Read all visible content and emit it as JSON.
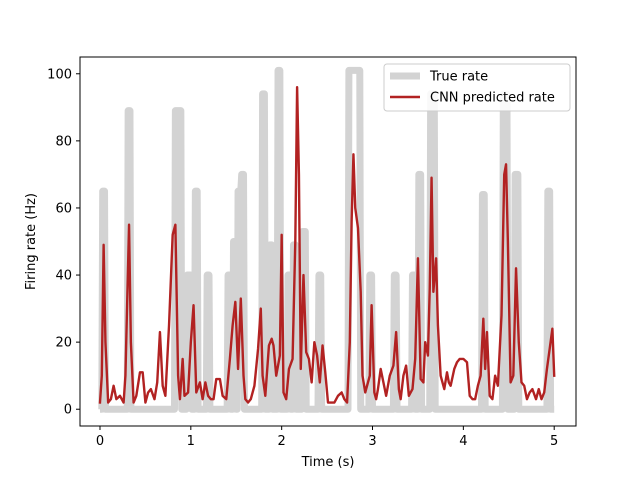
{
  "chart_data": {
    "type": "line",
    "title": "",
    "xlabel": "Time (s)",
    "ylabel": "Firing rate (Hz)",
    "xlim": [
      -0.22,
      5.24
    ],
    "ylim": [
      -5,
      105
    ],
    "xticks": [
      0,
      1,
      2,
      3,
      4,
      5
    ],
    "xtick_labels": [
      "0",
      "1",
      "2",
      "3",
      "4",
      "5"
    ],
    "yticks": [
      0,
      20,
      40,
      60,
      80,
      100
    ],
    "ytick_labels": [
      "0",
      "20",
      "40",
      "60",
      "80",
      "100"
    ],
    "grid": false,
    "legend_position": "top-right",
    "series": [
      {
        "name": "True rate",
        "color": "#d3d3d3",
        "points": [
          [
            0,
            0
          ],
          [
            0.02,
            0
          ],
          [
            0.03,
            65
          ],
          [
            0.05,
            65
          ],
          [
            0.06,
            0
          ],
          [
            0.3,
            0
          ],
          [
            0.31,
            89
          ],
          [
            0.33,
            89
          ],
          [
            0.34,
            0
          ],
          [
            0.82,
            0
          ],
          [
            0.83,
            89
          ],
          [
            0.89,
            89
          ],
          [
            0.9,
            0
          ],
          [
            0.95,
            0
          ],
          [
            0.96,
            40
          ],
          [
            1.0,
            40
          ],
          [
            1.01,
            0
          ],
          [
            1.04,
            0
          ],
          [
            1.05,
            65
          ],
          [
            1.07,
            65
          ],
          [
            1.08,
            0
          ],
          [
            1.17,
            0
          ],
          [
            1.18,
            40
          ],
          [
            1.2,
            40
          ],
          [
            1.21,
            0
          ],
          [
            1.4,
            0
          ],
          [
            1.41,
            40
          ],
          [
            1.43,
            40
          ],
          [
            1.44,
            0
          ],
          [
            1.46,
            0
          ],
          [
            1.47,
            50
          ],
          [
            1.49,
            50
          ],
          [
            1.5,
            0
          ],
          [
            1.51,
            0
          ],
          [
            1.52,
            65
          ],
          [
            1.55,
            65
          ],
          [
            1.56,
            70
          ],
          [
            1.58,
            70
          ],
          [
            1.59,
            0
          ],
          [
            1.78,
            0
          ],
          [
            1.79,
            94
          ],
          [
            1.81,
            94
          ],
          [
            1.82,
            0
          ],
          [
            1.86,
            0
          ],
          [
            1.87,
            49
          ],
          [
            1.89,
            49
          ],
          [
            1.9,
            0
          ],
          [
            1.95,
            0
          ],
          [
            1.96,
            101
          ],
          [
            1.98,
            101
          ],
          [
            1.99,
            0
          ],
          [
            2.06,
            0
          ],
          [
            2.07,
            40
          ],
          [
            2.09,
            40
          ],
          [
            2.1,
            0
          ],
          [
            2.12,
            0
          ],
          [
            2.13,
            49
          ],
          [
            2.15,
            49
          ],
          [
            2.16,
            0
          ],
          [
            2.22,
            0
          ],
          [
            2.23,
            53
          ],
          [
            2.26,
            53
          ],
          [
            2.27,
            0
          ],
          [
            2.4,
            0
          ],
          [
            2.41,
            40
          ],
          [
            2.43,
            40
          ],
          [
            2.44,
            0
          ],
          [
            2.73,
            0
          ],
          [
            2.74,
            101
          ],
          [
            2.86,
            101
          ],
          [
            2.87,
            0
          ],
          [
            2.96,
            0
          ],
          [
            2.97,
            40
          ],
          [
            2.99,
            40
          ],
          [
            3.0,
            0
          ],
          [
            3.23,
            0
          ],
          [
            3.24,
            40
          ],
          [
            3.26,
            40
          ],
          [
            3.27,
            0
          ],
          [
            3.43,
            0
          ],
          [
            3.44,
            40
          ],
          [
            3.46,
            40
          ],
          [
            3.47,
            0
          ],
          [
            3.5,
            0
          ],
          [
            3.51,
            70
          ],
          [
            3.53,
            70
          ],
          [
            3.54,
            0
          ],
          [
            3.63,
            0
          ],
          [
            3.64,
            94
          ],
          [
            3.68,
            94
          ],
          [
            3.69,
            0
          ],
          [
            4.2,
            0
          ],
          [
            4.21,
            64
          ],
          [
            4.23,
            64
          ],
          [
            4.24,
            0
          ],
          [
            4.43,
            0
          ],
          [
            4.44,
            94
          ],
          [
            4.48,
            94
          ],
          [
            4.49,
            0
          ],
          [
            4.56,
            0
          ],
          [
            4.57,
            70
          ],
          [
            4.6,
            70
          ],
          [
            4.61,
            0
          ],
          [
            4.92,
            0
          ],
          [
            4.93,
            65
          ],
          [
            4.95,
            65
          ],
          [
            4.96,
            0
          ],
          [
            5.0,
            0
          ]
        ]
      },
      {
        "name": "CNN predicted rate",
        "color": "#b22222",
        "points": [
          [
            0,
            2
          ],
          [
            0.02,
            10
          ],
          [
            0.04,
            49
          ],
          [
            0.06,
            20
          ],
          [
            0.09,
            2
          ],
          [
            0.12,
            3
          ],
          [
            0.15,
            7
          ],
          [
            0.18,
            3
          ],
          [
            0.22,
            4
          ],
          [
            0.26,
            2
          ],
          [
            0.28,
            10
          ],
          [
            0.32,
            55
          ],
          [
            0.34,
            20
          ],
          [
            0.37,
            2
          ],
          [
            0.4,
            4
          ],
          [
            0.44,
            11
          ],
          [
            0.47,
            11
          ],
          [
            0.5,
            2
          ],
          [
            0.53,
            5
          ],
          [
            0.56,
            6
          ],
          [
            0.6,
            3
          ],
          [
            0.63,
            8
          ],
          [
            0.66,
            23
          ],
          [
            0.69,
            7
          ],
          [
            0.72,
            4
          ],
          [
            0.76,
            25
          ],
          [
            0.8,
            52
          ],
          [
            0.83,
            55
          ],
          [
            0.86,
            10
          ],
          [
            0.88,
            3
          ],
          [
            0.91,
            15
          ],
          [
            0.93,
            4
          ],
          [
            0.97,
            5
          ],
          [
            1.0,
            20
          ],
          [
            1.03,
            31
          ],
          [
            1.06,
            5
          ],
          [
            1.1,
            8
          ],
          [
            1.13,
            3
          ],
          [
            1.16,
            8
          ],
          [
            1.19,
            4
          ],
          [
            1.22,
            3
          ],
          [
            1.25,
            3
          ],
          [
            1.28,
            9
          ],
          [
            1.32,
            9
          ],
          [
            1.35,
            4
          ],
          [
            1.39,
            3
          ],
          [
            1.43,
            15
          ],
          [
            1.46,
            25
          ],
          [
            1.49,
            32
          ],
          [
            1.52,
            12
          ],
          [
            1.55,
            33
          ],
          [
            1.58,
            10
          ],
          [
            1.6,
            3
          ],
          [
            1.63,
            2
          ],
          [
            1.66,
            3
          ],
          [
            1.7,
            7
          ],
          [
            1.74,
            18
          ],
          [
            1.77,
            30
          ],
          [
            1.79,
            10
          ],
          [
            1.82,
            4
          ],
          [
            1.86,
            19
          ],
          [
            1.89,
            21
          ],
          [
            1.91,
            19
          ],
          [
            1.94,
            10
          ],
          [
            1.98,
            16
          ],
          [
            2.0,
            52
          ],
          [
            2.02,
            5
          ],
          [
            2.05,
            3
          ],
          [
            2.08,
            12
          ],
          [
            2.12,
            15
          ],
          [
            2.15,
            50
          ],
          [
            2.17,
            96
          ],
          [
            2.19,
            70
          ],
          [
            2.21,
            12
          ],
          [
            2.24,
            40
          ],
          [
            2.27,
            17
          ],
          [
            2.3,
            15
          ],
          [
            2.33,
            8
          ],
          [
            2.36,
            20
          ],
          [
            2.39,
            16
          ],
          [
            2.42,
            8
          ],
          [
            2.45,
            19
          ],
          [
            2.48,
            11
          ],
          [
            2.51,
            2
          ],
          [
            2.55,
            2
          ],
          [
            2.58,
            2
          ],
          [
            2.62,
            4
          ],
          [
            2.66,
            5
          ],
          [
            2.69,
            3
          ],
          [
            2.72,
            2
          ],
          [
            2.75,
            20
          ],
          [
            2.77,
            56
          ],
          [
            2.79,
            76
          ],
          [
            2.81,
            60
          ],
          [
            2.84,
            54
          ],
          [
            2.87,
            35
          ],
          [
            2.89,
            10
          ],
          [
            2.92,
            5
          ],
          [
            2.95,
            8
          ],
          [
            2.97,
            10
          ],
          [
            2.99,
            31
          ],
          [
            3.02,
            5
          ],
          [
            3.04,
            3
          ],
          [
            3.06,
            6
          ],
          [
            3.09,
            12
          ],
          [
            3.12,
            8
          ],
          [
            3.15,
            4
          ],
          [
            3.19,
            10
          ],
          [
            3.23,
            13
          ],
          [
            3.26,
            23
          ],
          [
            3.29,
            6
          ],
          [
            3.31,
            3
          ],
          [
            3.34,
            10
          ],
          [
            3.37,
            13
          ],
          [
            3.4,
            4
          ],
          [
            3.44,
            6
          ],
          [
            3.47,
            15
          ],
          [
            3.5,
            45
          ],
          [
            3.53,
            9
          ],
          [
            3.56,
            8
          ],
          [
            3.58,
            20
          ],
          [
            3.61,
            16
          ],
          [
            3.63,
            36
          ],
          [
            3.65,
            69
          ],
          [
            3.67,
            35
          ],
          [
            3.7,
            45
          ],
          [
            3.72,
            25
          ],
          [
            3.75,
            10
          ],
          [
            3.79,
            6
          ],
          [
            3.82,
            11
          ],
          [
            3.84,
            8
          ],
          [
            3.86,
            7
          ],
          [
            3.9,
            12
          ],
          [
            3.93,
            14
          ],
          [
            3.96,
            15
          ],
          [
            4.0,
            15
          ],
          [
            4.04,
            14
          ],
          [
            4.07,
            4
          ],
          [
            4.1,
            3
          ],
          [
            4.13,
            3
          ],
          [
            4.16,
            7
          ],
          [
            4.19,
            10
          ],
          [
            4.22,
            27
          ],
          [
            4.24,
            12
          ],
          [
            4.26,
            23
          ],
          [
            4.29,
            4
          ],
          [
            4.32,
            3
          ],
          [
            4.35,
            10
          ],
          [
            4.38,
            7
          ],
          [
            4.42,
            28
          ],
          [
            4.45,
            70
          ],
          [
            4.47,
            73
          ],
          [
            4.49,
            50
          ],
          [
            4.52,
            8
          ],
          [
            4.55,
            10
          ],
          [
            4.58,
            42
          ],
          [
            4.61,
            20
          ],
          [
            4.64,
            8
          ],
          [
            4.67,
            7
          ],
          [
            4.7,
            3
          ],
          [
            4.73,
            5
          ],
          [
            4.76,
            6
          ],
          [
            4.8,
            3
          ],
          [
            4.83,
            6
          ],
          [
            4.86,
            3
          ],
          [
            4.89,
            5
          ],
          [
            4.92,
            12
          ],
          [
            4.95,
            18
          ],
          [
            4.98,
            24
          ],
          [
            5.0,
            10
          ]
        ]
      }
    ]
  }
}
